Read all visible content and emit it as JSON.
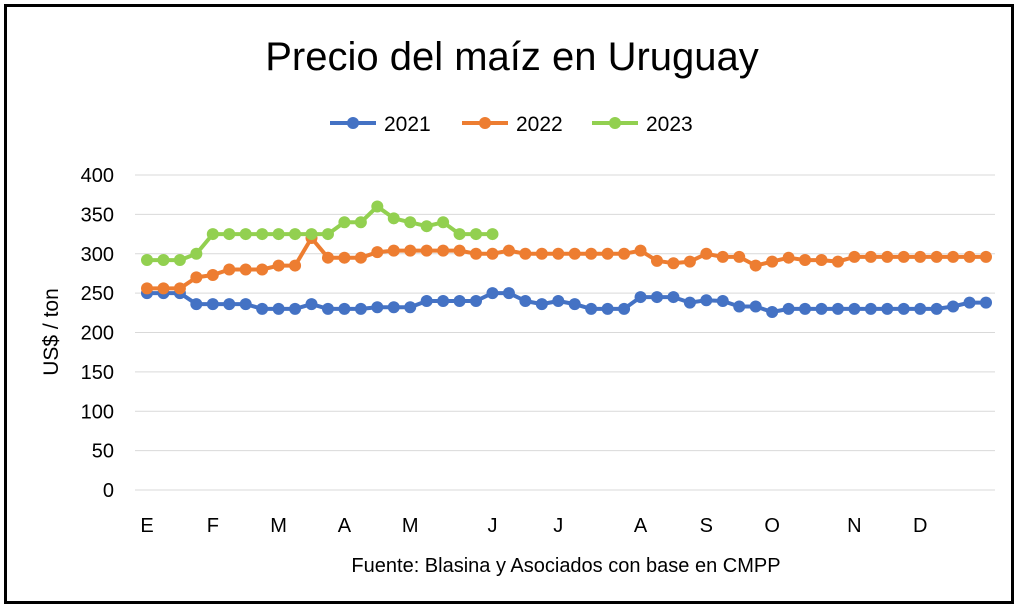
{
  "chart_data": {
    "type": "line",
    "title": "Precio del maíz en Uruguay",
    "ylabel": "US$ / ton",
    "xlabel": "",
    "source_note": "Fuente: Blasina y Asociados con base en CMPP",
    "ylim": [
      0,
      400
    ],
    "y_ticks": [
      "0",
      "50",
      "100",
      "150",
      "200",
      "250",
      "300",
      "350",
      "400"
    ],
    "x_ticks": [
      "E",
      "F",
      "M",
      "A",
      "M",
      "J",
      "J",
      "A",
      "S",
      "O",
      "N",
      "D"
    ],
    "x_tick_positions": [
      0,
      4,
      8,
      12,
      16,
      21,
      25,
      30,
      34,
      38,
      43,
      47
    ],
    "x_range": [
      0,
      51
    ],
    "grid": "horizontal",
    "legend_position": "top",
    "series": [
      {
        "name": "2021",
        "color": "#4472C4",
        "values": [
          250,
          250,
          250,
          236,
          236,
          236,
          236,
          230,
          230,
          230,
          236,
          230,
          230,
          230,
          232,
          232,
          232,
          240,
          240,
          240,
          240,
          250,
          250,
          240,
          236,
          240,
          236,
          230,
          230,
          230,
          245,
          245,
          245,
          238,
          241,
          240,
          233,
          233,
          226,
          230,
          230,
          230,
          230,
          230,
          230,
          230,
          230,
          230,
          230,
          233,
          238,
          238
        ]
      },
      {
        "name": "2022",
        "color": "#ED7D31",
        "values": [
          256,
          256,
          256,
          270,
          273,
          280,
          280,
          280,
          285,
          285,
          320,
          295,
          295,
          295,
          302,
          304,
          304,
          304,
          304,
          304,
          300,
          300,
          304,
          300,
          300,
          300,
          300,
          300,
          300,
          300,
          304,
          291,
          288,
          290,
          300,
          296,
          296,
          285,
          290,
          295,
          292,
          292,
          290,
          296,
          296,
          296,
          296,
          296,
          296,
          296,
          296,
          296
        ]
      },
      {
        "name": "2023",
        "color": "#92D050",
        "values": [
          292,
          292,
          292,
          300,
          325,
          325,
          325,
          325,
          325,
          325,
          325,
          325,
          340,
          340,
          360,
          345,
          340,
          335,
          340,
          325,
          325,
          325
        ]
      }
    ]
  }
}
